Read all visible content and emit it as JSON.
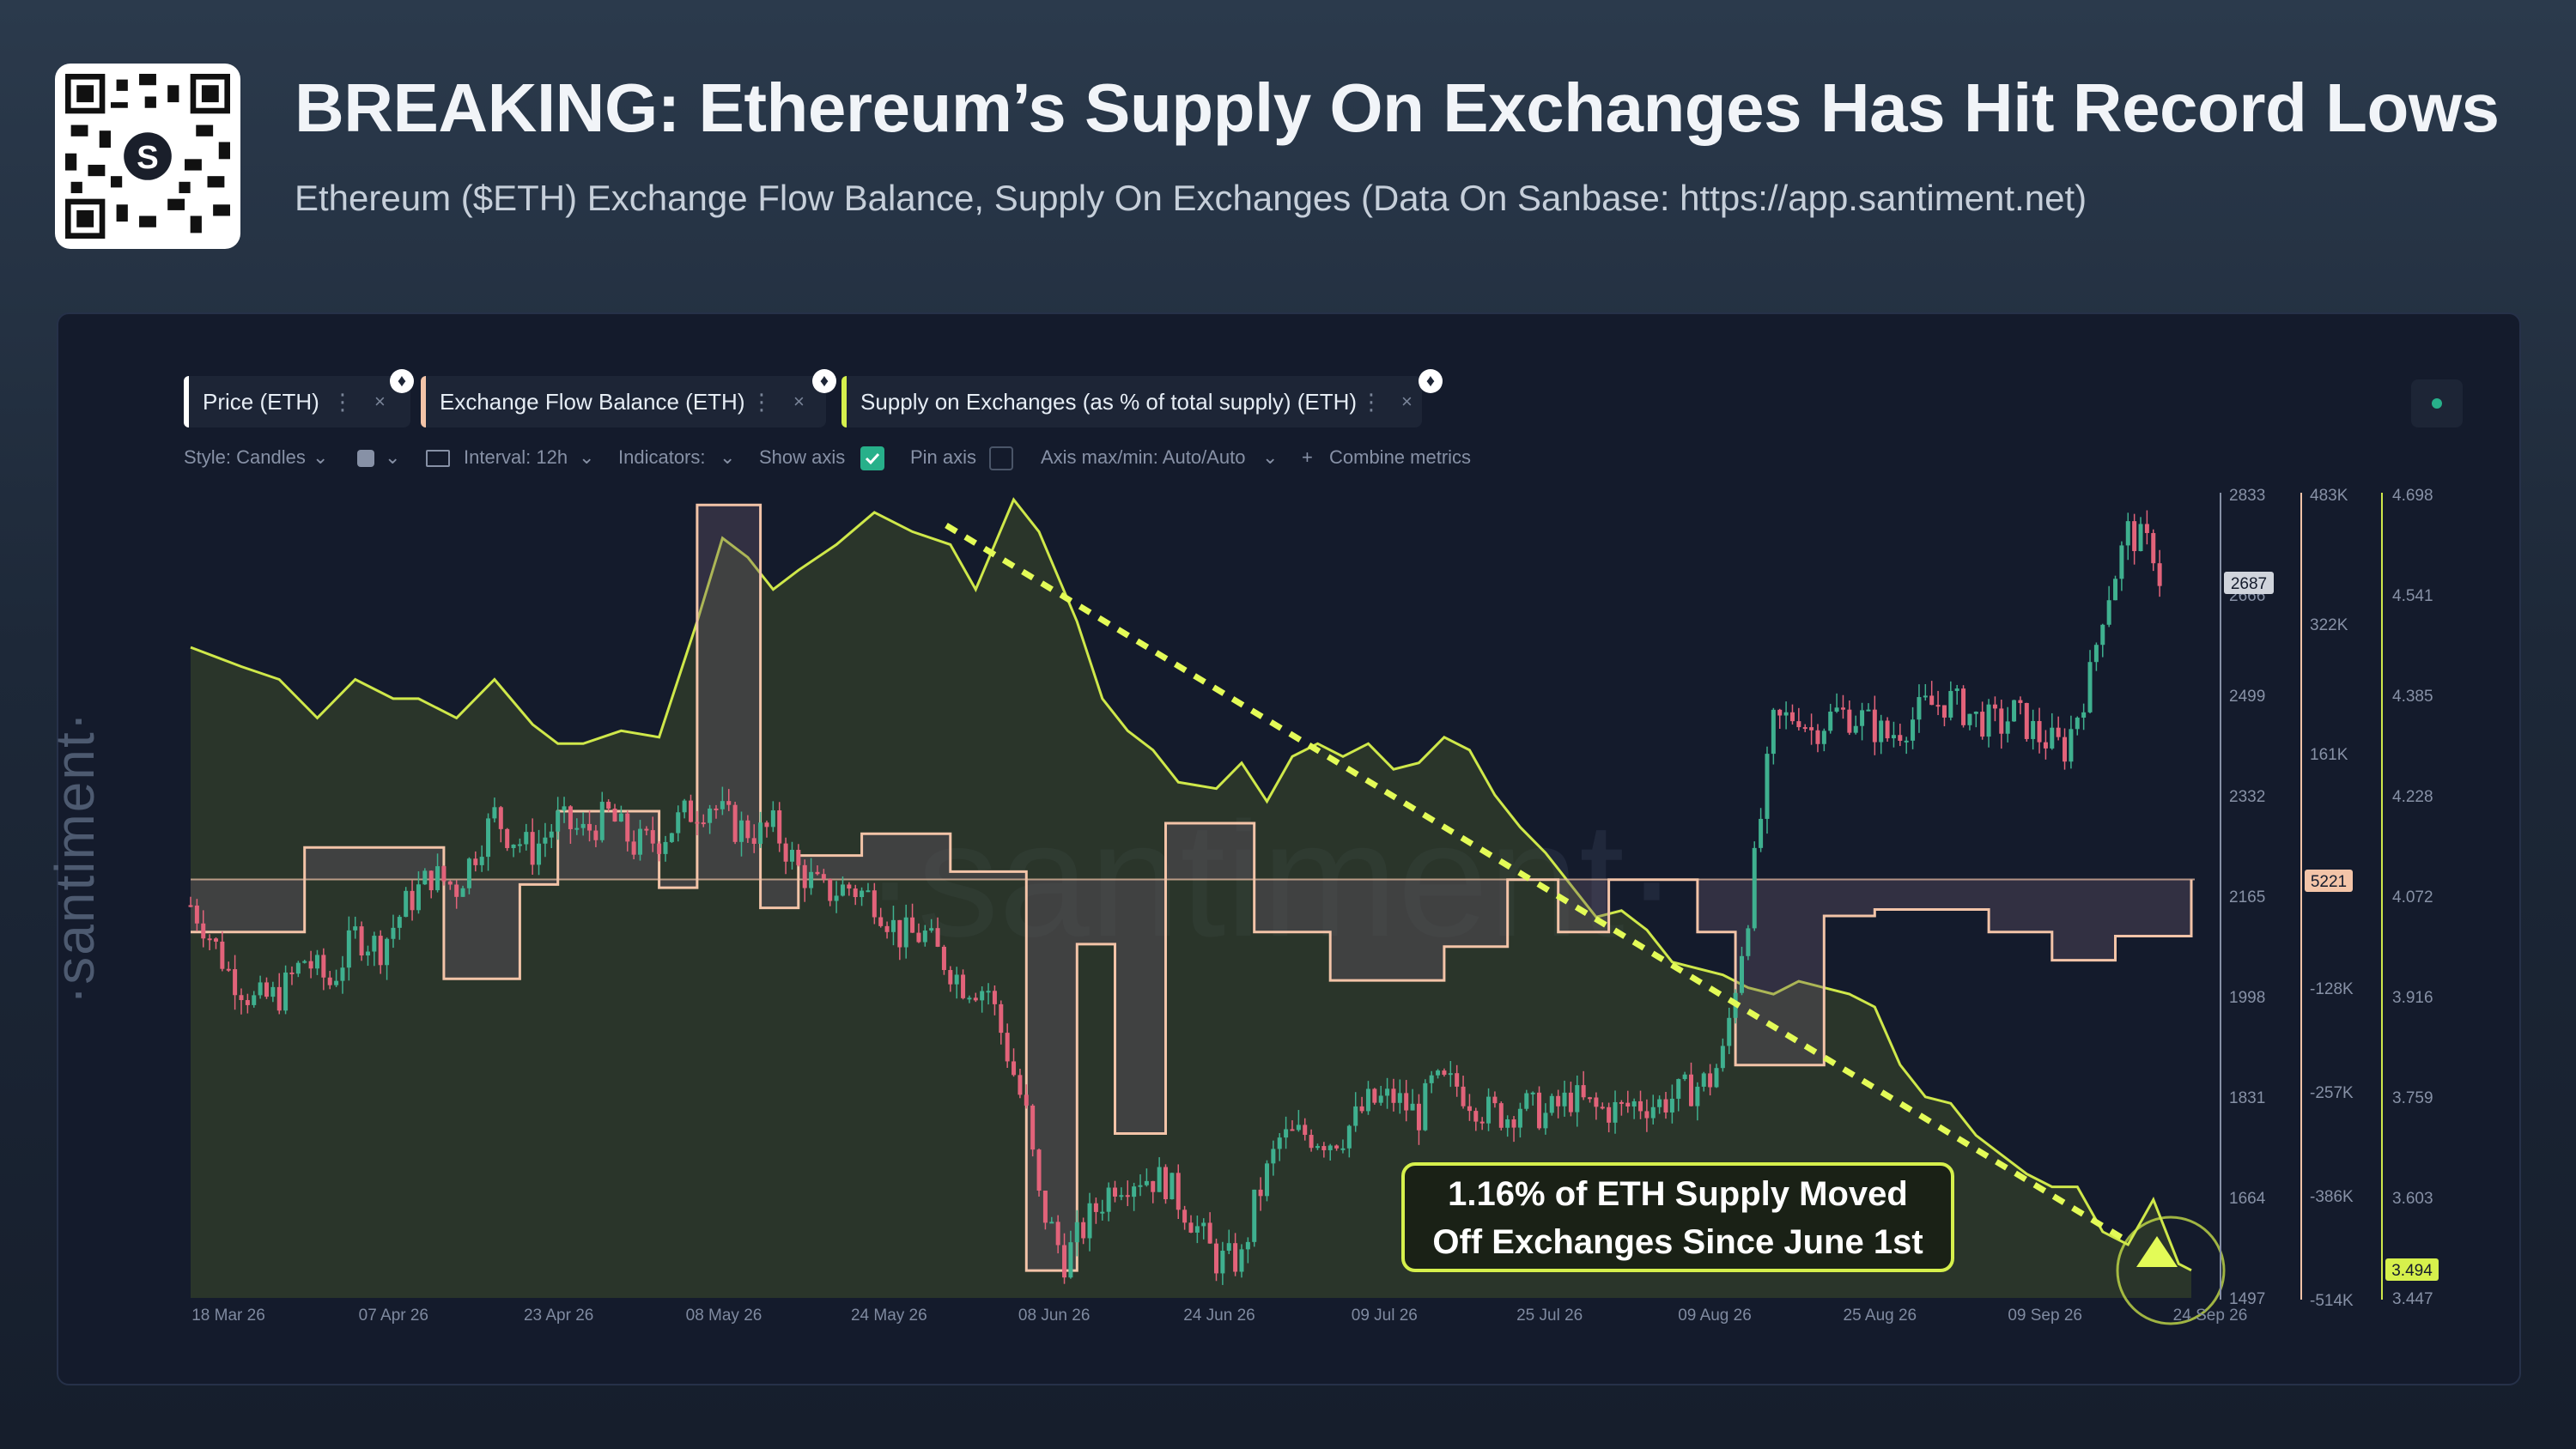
{
  "header": {
    "title": "BREAKING: Ethereum’s Supply On Exchanges Has Hit Record Lows",
    "subtitle": "Ethereum ($ETH) Exchange Flow Balance, Supply On Exchanges (Data On Sanbase: https://app.santiment.net)",
    "qr_center_label": "S"
  },
  "tabs": [
    {
      "label": "Price (ETH)",
      "color": "#ffffff"
    },
    {
      "label": "Exchange Flow Balance (ETH)",
      "color": "#f3c4a8"
    },
    {
      "label": "Supply on Exchanges (as % of total supply) (ETH)",
      "color": "#d6f04c"
    }
  ],
  "tab_icons": {
    "more": "⋮",
    "close": "×",
    "eth": "♦"
  },
  "toolbar": {
    "style": "Style: Candles",
    "interval": "Interval: 12h",
    "indicators": "Indicators:",
    "show_axis": "Show axis",
    "pin_axis": "Pin axis",
    "axis_maxmin": "Axis max/min: Auto/Auto",
    "combine": "Combine metrics",
    "plus": "+",
    "chevron": "⌄"
  },
  "watermark": "·santiment·",
  "chart_data": {
    "type": "line",
    "x_ticks": [
      "18 Mar 26",
      "07 Apr 26",
      "23 Apr 26",
      "08 May 26",
      "24 May 26",
      "08 Jun 26",
      "24 Jun 26",
      "09 Jul 26",
      "25 Jul 26",
      "09 Aug 26",
      "25 Aug 26",
      "09 Sep 26",
      "24 Sep 26"
    ],
    "axes": {
      "price": {
        "ticks": [
          "2833",
          "2666",
          "2499",
          "2332",
          "2165",
          "1998",
          "1831",
          "1664",
          "1497"
        ],
        "range": [
          1497,
          2833
        ],
        "last_value": "2687"
      },
      "flow": {
        "ticks": [
          "483K",
          "322K",
          "161K",
          "-128K",
          "-257K",
          "-386K",
          "-514K"
        ],
        "range": [
          -514000,
          483000
        ],
        "last_value": "5221"
      },
      "supply": {
        "ticks": [
          "4.698",
          "4.541",
          "4.385",
          "4.228",
          "4.072",
          "3.916",
          "3.759",
          "3.603",
          "3.447"
        ],
        "range": [
          3.447,
          4.698
        ],
        "last_value": "3.494"
      }
    },
    "annotation": {
      "line1": "1.16% of ETH Supply Moved",
      "line2": "Off Exchanges Since June 1st"
    },
    "trend_line": {
      "from": [
        "2026-06-01",
        4.69
      ],
      "to": [
        "2026-09-24",
        3.55
      ]
    },
    "series": [
      {
        "name": "Price (ETH)",
        "axis": "price",
        "style": "candles",
        "points": [
          [
            0,
            2150
          ],
          [
            1,
            2120
          ],
          [
            3,
            2040
          ],
          [
            5,
            1990
          ],
          [
            7,
            2000
          ],
          [
            9,
            2060
          ],
          [
            11,
            2020
          ],
          [
            13,
            2100
          ],
          [
            15,
            2080
          ],
          [
            17,
            2150
          ],
          [
            19,
            2200
          ],
          [
            21,
            2180
          ],
          [
            23,
            2260
          ],
          [
            24,
            2300
          ],
          [
            25,
            2270
          ],
          [
            27,
            2240
          ],
          [
            29,
            2290
          ],
          [
            31,
            2270
          ],
          [
            33,
            2300
          ],
          [
            35,
            2250
          ],
          [
            37,
            2260
          ],
          [
            39,
            2300
          ],
          [
            41,
            2320
          ],
          [
            43,
            2280
          ],
          [
            45,
            2270
          ],
          [
            46,
            2280
          ],
          [
            48,
            2210
          ],
          [
            50,
            2170
          ],
          [
            52,
            2180
          ],
          [
            54,
            2160
          ],
          [
            56,
            2100
          ],
          [
            58,
            2100
          ],
          [
            59,
            2070
          ],
          [
            61,
            2020
          ],
          [
            63,
            2010
          ],
          [
            64,
            1940
          ],
          [
            66,
            1800
          ],
          [
            67,
            1660
          ],
          [
            69,
            1560
          ],
          [
            71,
            1630
          ],
          [
            73,
            1690
          ],
          [
            75,
            1700
          ],
          [
            77,
            1690
          ],
          [
            79,
            1630
          ],
          [
            81,
            1560
          ],
          [
            83,
            1560
          ],
          [
            84,
            1650
          ],
          [
            86,
            1760
          ],
          [
            88,
            1770
          ],
          [
            90,
            1760
          ],
          [
            91,
            1770
          ],
          [
            93,
            1820
          ],
          [
            95,
            1830
          ],
          [
            97,
            1800
          ],
          [
            98,
            1850
          ],
          [
            100,
            1850
          ],
          [
            102,
            1810
          ],
          [
            104,
            1800
          ],
          [
            105,
            1820
          ],
          [
            107,
            1800
          ],
          [
            109,
            1830
          ],
          [
            111,
            1810
          ],
          [
            113,
            1810
          ],
          [
            114,
            1820
          ],
          [
            116,
            1820
          ],
          [
            118,
            1840
          ],
          [
            120,
            1860
          ],
          [
            121,
            1900
          ],
          [
            123,
            2140
          ],
          [
            125,
            2450
          ],
          [
            127,
            2470
          ],
          [
            128,
            2440
          ],
          [
            130,
            2470
          ],
          [
            132,
            2460
          ],
          [
            134,
            2430
          ],
          [
            136,
            2460
          ],
          [
            137,
            2480
          ],
          [
            139,
            2490
          ],
          [
            141,
            2460
          ],
          [
            143,
            2450
          ],
          [
            144,
            2470
          ],
          [
            146,
            2430
          ],
          [
            148,
            2410
          ],
          [
            150,
            2530
          ],
          [
            151,
            2640
          ],
          [
            153,
            2770
          ],
          [
            155,
            2740
          ],
          [
            156,
            2650
          ]
        ]
      },
      {
        "name": "Exchange Flow Balance (ETH)",
        "axis": "flow",
        "style": "step-area",
        "points": [
          [
            0,
            -60000
          ],
          [
            9,
            -60000
          ],
          [
            9,
            45000
          ],
          [
            20,
            45000
          ],
          [
            20,
            -118000
          ],
          [
            26,
            -118000
          ],
          [
            26,
            -1000
          ],
          [
            29,
            -1000
          ],
          [
            29,
            90000
          ],
          [
            37,
            90000
          ],
          [
            37,
            -5000
          ],
          [
            40,
            -5000
          ],
          [
            40,
            470000
          ],
          [
            45,
            470000
          ],
          [
            45,
            -30000
          ],
          [
            48,
            -30000
          ],
          [
            48,
            35000
          ],
          [
            53,
            35000
          ],
          [
            53,
            62000
          ],
          [
            60,
            62000
          ],
          [
            60,
            15000
          ],
          [
            66,
            15000
          ],
          [
            66,
            -480000
          ],
          [
            70,
            -480000
          ],
          [
            70,
            -75000
          ],
          [
            73,
            -75000
          ],
          [
            73,
            -310000
          ],
          [
            77,
            -310000
          ],
          [
            77,
            75000
          ],
          [
            84,
            75000
          ],
          [
            84,
            -60000
          ],
          [
            90,
            -60000
          ],
          [
            90,
            -120000
          ],
          [
            99,
            -120000
          ],
          [
            99,
            -78000
          ],
          [
            104,
            -78000
          ],
          [
            104,
            5000
          ],
          [
            108,
            5000
          ],
          [
            108,
            -60000
          ],
          [
            112,
            -60000
          ],
          [
            112,
            5000
          ],
          [
            119,
            5000
          ],
          [
            119,
            -60000
          ],
          [
            122,
            -60000
          ],
          [
            122,
            -225000
          ],
          [
            129,
            -225000
          ],
          [
            129,
            -40000
          ],
          [
            133,
            -40000
          ],
          [
            133,
            -32000
          ],
          [
            142,
            -32000
          ],
          [
            142,
            -60000
          ],
          [
            147,
            -60000
          ],
          [
            147,
            -95000
          ],
          [
            152,
            -95000
          ],
          [
            152,
            -65000
          ],
          [
            158,
            -65000
          ],
          [
            158,
            5000
          ]
        ]
      },
      {
        "name": "Supply on Exchanges (as % of total supply) (ETH)",
        "axis": "supply",
        "style": "area",
        "points": [
          [
            0,
            4.46
          ],
          [
            4,
            4.43
          ],
          [
            7,
            4.41
          ],
          [
            10,
            4.35
          ],
          [
            13,
            4.41
          ],
          [
            16,
            4.38
          ],
          [
            18,
            4.38
          ],
          [
            21,
            4.35
          ],
          [
            24,
            4.41
          ],
          [
            27,
            4.34
          ],
          [
            29,
            4.31
          ],
          [
            31,
            4.31
          ],
          [
            34,
            4.33
          ],
          [
            37,
            4.32
          ],
          [
            40,
            4.5
          ],
          [
            42,
            4.63
          ],
          [
            44,
            4.6
          ],
          [
            46,
            4.55
          ],
          [
            48,
            4.58
          ],
          [
            51,
            4.62
          ],
          [
            54,
            4.67
          ],
          [
            57,
            4.64
          ],
          [
            60,
            4.62
          ],
          [
            62,
            4.55
          ],
          [
            65,
            4.69
          ],
          [
            67,
            4.64
          ],
          [
            70,
            4.5
          ],
          [
            72,
            4.38
          ],
          [
            74,
            4.33
          ],
          [
            76,
            4.3
          ],
          [
            78,
            4.25
          ],
          [
            81,
            4.24
          ],
          [
            83,
            4.28
          ],
          [
            85,
            4.22
          ],
          [
            87,
            4.29
          ],
          [
            89,
            4.31
          ],
          [
            91,
            4.29
          ],
          [
            93,
            4.31
          ],
          [
            95,
            4.27
          ],
          [
            97,
            4.28
          ],
          [
            99,
            4.32
          ],
          [
            101,
            4.3
          ],
          [
            103,
            4.23
          ],
          [
            105,
            4.18
          ],
          [
            107,
            4.14
          ],
          [
            109,
            4.09
          ],
          [
            111,
            4.04
          ],
          [
            113,
            4.05
          ],
          [
            115,
            4.02
          ],
          [
            117,
            3.97
          ],
          [
            119,
            3.96
          ],
          [
            121,
            3.95
          ],
          [
            123,
            3.93
          ],
          [
            125,
            3.92
          ],
          [
            127,
            3.94
          ],
          [
            129,
            3.93
          ],
          [
            131,
            3.92
          ],
          [
            133,
            3.9
          ],
          [
            135,
            3.81
          ],
          [
            137,
            3.76
          ],
          [
            139,
            3.75
          ],
          [
            141,
            3.7
          ],
          [
            143,
            3.67
          ],
          [
            145,
            3.64
          ],
          [
            147,
            3.62
          ],
          [
            149,
            3.62
          ],
          [
            151,
            3.55
          ],
          [
            153,
            3.53
          ],
          [
            155,
            3.6
          ],
          [
            157,
            3.5
          ],
          [
            158,
            3.49
          ]
        ]
      }
    ]
  }
}
